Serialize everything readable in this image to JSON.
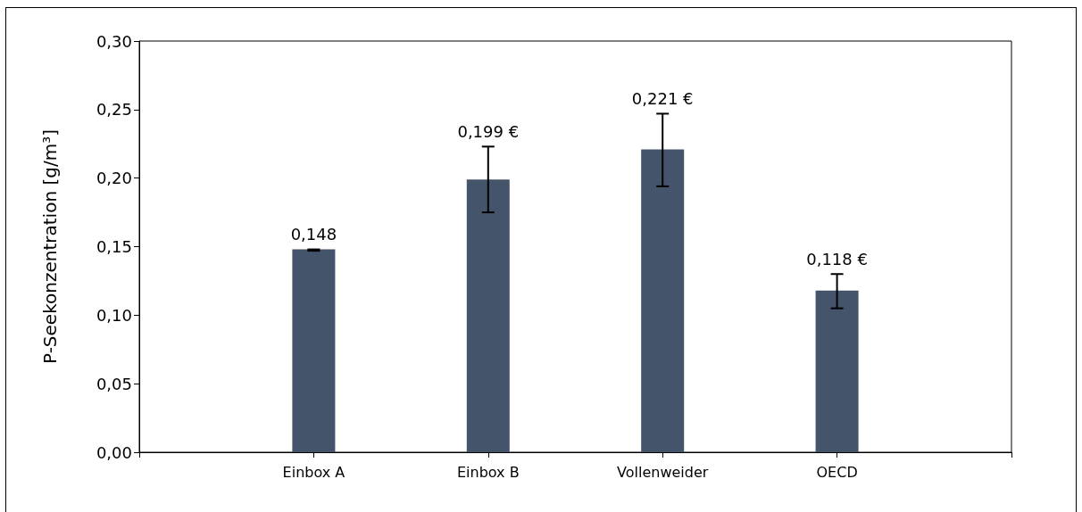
{
  "chart_data": {
    "type": "bar",
    "ylabel": "P-Seekonzentration [g/m³]",
    "categories": [
      null,
      "Einbox A",
      "Einbox B",
      "Vollenweider",
      "OECD",
      null
    ],
    "values": [
      null,
      0.148,
      0.199,
      0.221,
      0.118,
      null
    ],
    "errors": [
      null,
      [
        0.147,
        0.148
      ],
      [
        0.175,
        0.223
      ],
      [
        0.194,
        0.247
      ],
      [
        0.105,
        0.13
      ],
      null
    ],
    "value_labels": [
      null,
      "0,148",
      "0,199 €",
      "0,221 €",
      "0,118 €",
      null
    ],
    "color": "#44546a",
    "ylim": [
      0,
      0.3
    ],
    "yticks": [
      {
        "value": 0,
        "label": "0,00"
      },
      {
        "value": 0.05,
        "label": "0,05"
      },
      {
        "value": 0.1,
        "label": "0,10"
      },
      {
        "value": 0.15,
        "label": "0,15"
      },
      {
        "value": 0.2,
        "label": "0,20"
      },
      {
        "value": 0.25,
        "label": "0,25"
      },
      {
        "value": 0.3,
        "label": "0,30"
      }
    ],
    "grid": false
  }
}
